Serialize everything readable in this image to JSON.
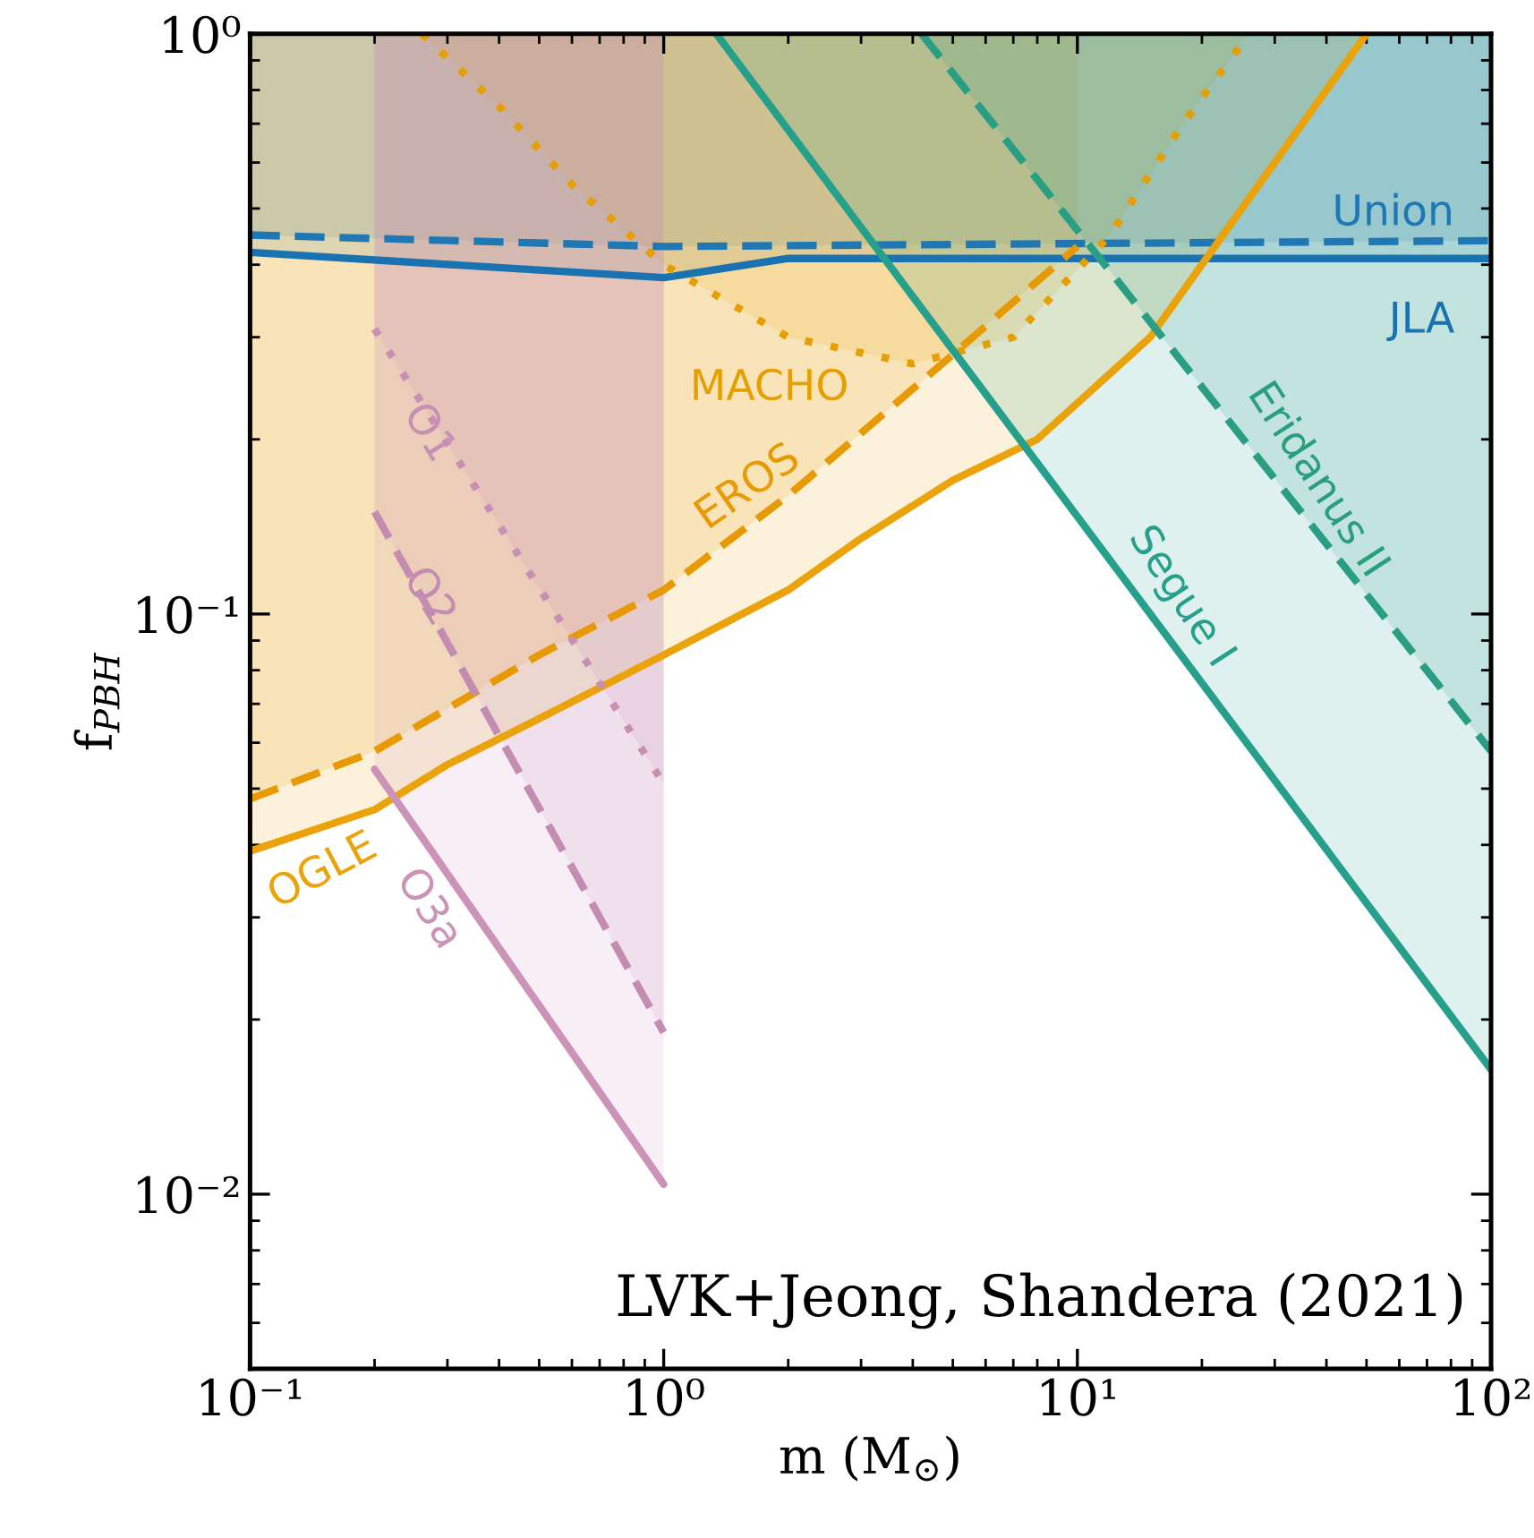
{
  "chart_data": {
    "type": "line",
    "xlabel": "m (M$_{⊙}$)",
    "ylabel": "f$_{PBH}$",
    "log": "xy",
    "xlim": [
      0.1,
      100
    ],
    "ylim": [
      0.005,
      1
    ],
    "xticks": [
      {
        "value": 0.1,
        "label": "10⁻¹"
      },
      {
        "value": 1,
        "label": "10⁰"
      },
      {
        "value": 10,
        "label": "10¹"
      },
      {
        "value": 100,
        "label": "10²"
      }
    ],
    "yticks": [
      {
        "value": 0.01,
        "label": "10⁻²"
      },
      {
        "value": 0.1,
        "label": "10⁻¹"
      },
      {
        "value": 1,
        "label": "10⁰"
      }
    ],
    "grid": false,
    "legend": false,
    "annotations": [
      "LVK+Jeong, Shandera (2021)"
    ],
    "series": [
      {
        "name": "Union",
        "color": "#1f78b4",
        "line_style": "dashed",
        "x": [
          0.1,
          1,
          100
        ],
        "values": [
          0.45,
          0.43,
          0.44
        ],
        "lower": [
          0.45,
          0.43,
          0.44
        ],
        "upper": [
          1,
          1,
          1
        ]
      },
      {
        "name": "JLA",
        "color": "#1b72b0",
        "line_style": "solid",
        "x": [
          0.1,
          1,
          2,
          100
        ],
        "values": [
          0.42,
          0.38,
          0.41,
          0.41
        ],
        "lower": [
          0.42,
          0.38,
          0.41,
          0.41
        ],
        "upper": [
          1,
          1,
          1,
          1
        ]
      },
      {
        "name": "MACHO",
        "color": "#e69f00",
        "line_style": "dotted",
        "x": [
          0.26,
          0.4,
          0.6,
          1,
          2,
          4,
          7,
          12,
          18,
          26
        ],
        "values": [
          1,
          0.75,
          0.55,
          0.4,
          0.3,
          0.27,
          0.3,
          0.45,
          0.7,
          1
        ],
        "lower": [
          1,
          0.75,
          0.55,
          0.4,
          0.3,
          0.27,
          0.3,
          0.45,
          0.7,
          1
        ],
        "upper": [
          1,
          1,
          1,
          1,
          1,
          1,
          1,
          1,
          1,
          1
        ]
      },
      {
        "name": "EROS",
        "color": "#e89a05",
        "line_style": "dashed",
        "x": [
          0.1,
          0.2,
          0.5,
          1,
          2,
          5,
          10
        ],
        "values": [
          0.048,
          0.058,
          0.085,
          0.11,
          0.16,
          0.28,
          0.43
        ],
        "lower": [
          0.048,
          0.058,
          0.085,
          0.11,
          0.16,
          0.28,
          0.43
        ],
        "upper": [
          1,
          1,
          1,
          1,
          1,
          1,
          1
        ]
      },
      {
        "name": "OGLE",
        "color": "#eaa30a",
        "line_style": "solid",
        "x": [
          0.1,
          0.2,
          0.3,
          0.5,
          1,
          2,
          3,
          5,
          8,
          15,
          25,
          35,
          50
        ],
        "values": [
          0.039,
          0.046,
          0.055,
          0.066,
          0.085,
          0.11,
          0.135,
          0.17,
          0.2,
          0.3,
          0.5,
          0.7,
          1
        ],
        "lower": [
          0.039,
          0.046,
          0.055,
          0.066,
          0.085,
          0.11,
          0.135,
          0.17,
          0.2,
          0.3,
          0.5,
          0.7,
          1
        ],
        "upper": [
          1,
          1,
          1,
          1,
          1,
          1,
          1,
          1,
          1,
          1,
          1,
          1,
          1
        ]
      },
      {
        "name": "O1",
        "color": "#c88fb5",
        "line_style": "dotted",
        "x": [
          0.2,
          1
        ],
        "values": [
          0.31,
          0.051
        ],
        "lower": [
          0.31,
          0.051
        ],
        "upper": [
          1,
          1
        ]
      },
      {
        "name": "O2",
        "color": "#c58cb2",
        "line_style": "dashed",
        "x": [
          0.2,
          1
        ],
        "values": [
          0.15,
          0.019
        ],
        "lower": [
          0.15,
          0.019
        ],
        "upper": [
          1,
          1
        ]
      },
      {
        "name": "O3a",
        "color": "#cc93b9",
        "line_style": "solid",
        "x": [
          0.2,
          1
        ],
        "values": [
          0.054,
          0.0104
        ],
        "lower": [
          0.054,
          0.0104
        ],
        "upper": [
          1,
          1
        ]
      },
      {
        "name": "Eridanus II",
        "color": "#2a9d85",
        "line_style": "dashed",
        "x": [
          4.2,
          100
        ],
        "values": [
          1,
          0.058
        ],
        "lower": [
          1,
          0.058
        ],
        "upper": [
          1,
          1
        ]
      },
      {
        "name": "Segue I",
        "color": "#26a08a",
        "line_style": "solid",
        "x": [
          1.34,
          100
        ],
        "values": [
          1,
          0.0164
        ],
        "lower": [
          1,
          0.0164
        ],
        "upper": [
          1,
          1
        ]
      }
    ]
  }
}
